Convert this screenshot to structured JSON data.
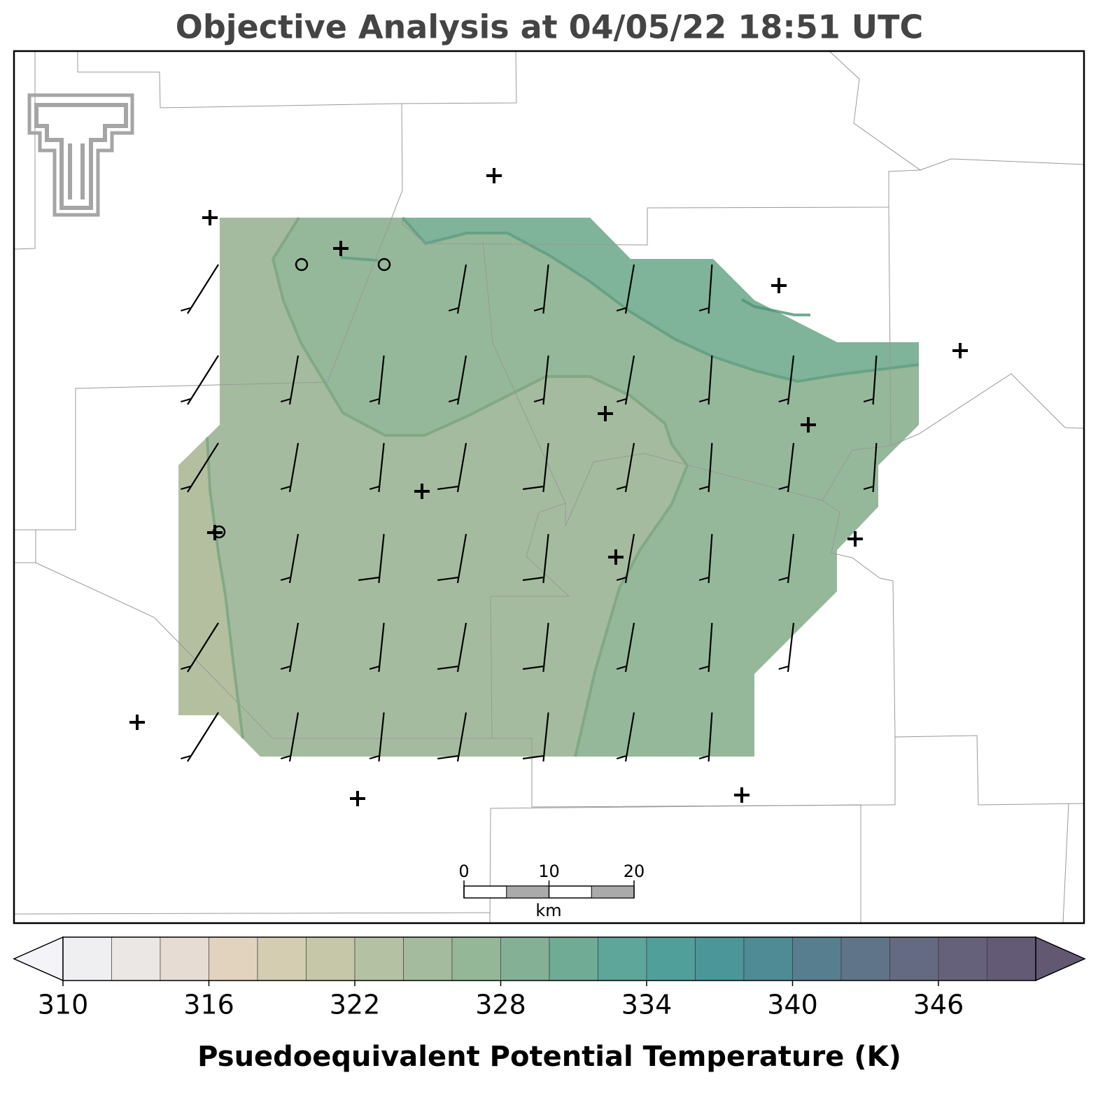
{
  "title": "Objective Analysis at 04/05/22 18:51 UTC",
  "scale_bar": {
    "ticks": [
      0,
      10,
      20
    ],
    "unit": "km"
  },
  "colorbar": {
    "label": "Psuedoequivalent Potential Temperature (K)",
    "lim": [
      310,
      350
    ],
    "step": 2,
    "ticks": [
      310,
      316,
      322,
      328,
      334,
      340,
      346
    ],
    "colors": [
      "#efeef0",
      "#ebe7e5",
      "#e6dcd3",
      "#e2d3bf",
      "#d4cdb1",
      "#c5c7a8",
      "#b4c2a3",
      "#a4bc9d",
      "#94b798",
      "#84b196",
      "#70ab96",
      "#5ea699",
      "#519f9b",
      "#4a9699",
      "#4f8b95",
      "#577e8e",
      "#5f7488",
      "#646a82",
      "#65617b",
      "#635b75"
    ],
    "extend_colors": [
      "#f3f3f8",
      "#635872"
    ]
  }
}
